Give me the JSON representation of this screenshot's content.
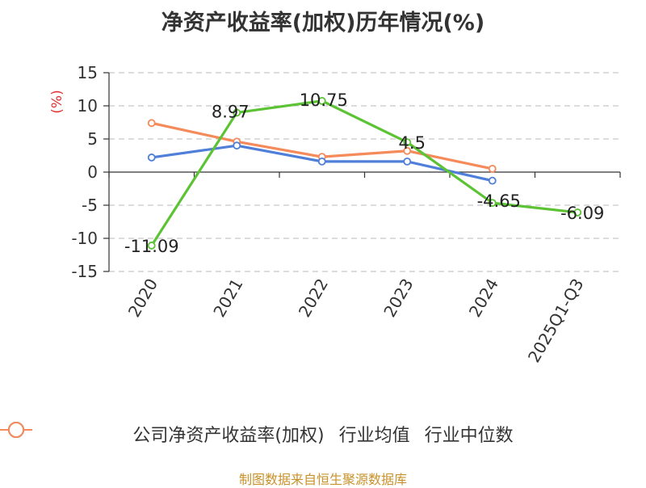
{
  "chart_data": {
    "type": "line",
    "title": "净资产收益率(加权)历年情况(%)",
    "ylabel": "(%)",
    "categories": [
      "2020",
      "2021",
      "2022",
      "2023",
      "2024",
      "2025Q1-Q3"
    ],
    "ylim": [
      -15,
      15
    ],
    "yticks": [
      15,
      10,
      5,
      0,
      -5,
      -10,
      -15
    ],
    "grid": true,
    "legend_position": "bottom",
    "series": [
      {
        "name": "公司净资产收益率(加权)",
        "color": "#5cc334",
        "values": [
          -11.09,
          8.97,
          10.75,
          4.5,
          -4.65,
          -6.09
        ],
        "labels": [
          "-11.09",
          "8.97",
          "10.75",
          "4.5",
          "-4.65",
          "-6.09"
        ]
      },
      {
        "name": "行业均值",
        "color": "#4f7fd8",
        "values": [
          2.2,
          4.0,
          1.6,
          1.6,
          -1.3,
          null
        ]
      },
      {
        "name": "行业中位数",
        "color": "#f58a5a",
        "values": [
          7.4,
          4.6,
          2.3,
          3.2,
          0.5,
          null
        ]
      }
    ]
  },
  "source": "制图数据来自恒生聚源数据库"
}
